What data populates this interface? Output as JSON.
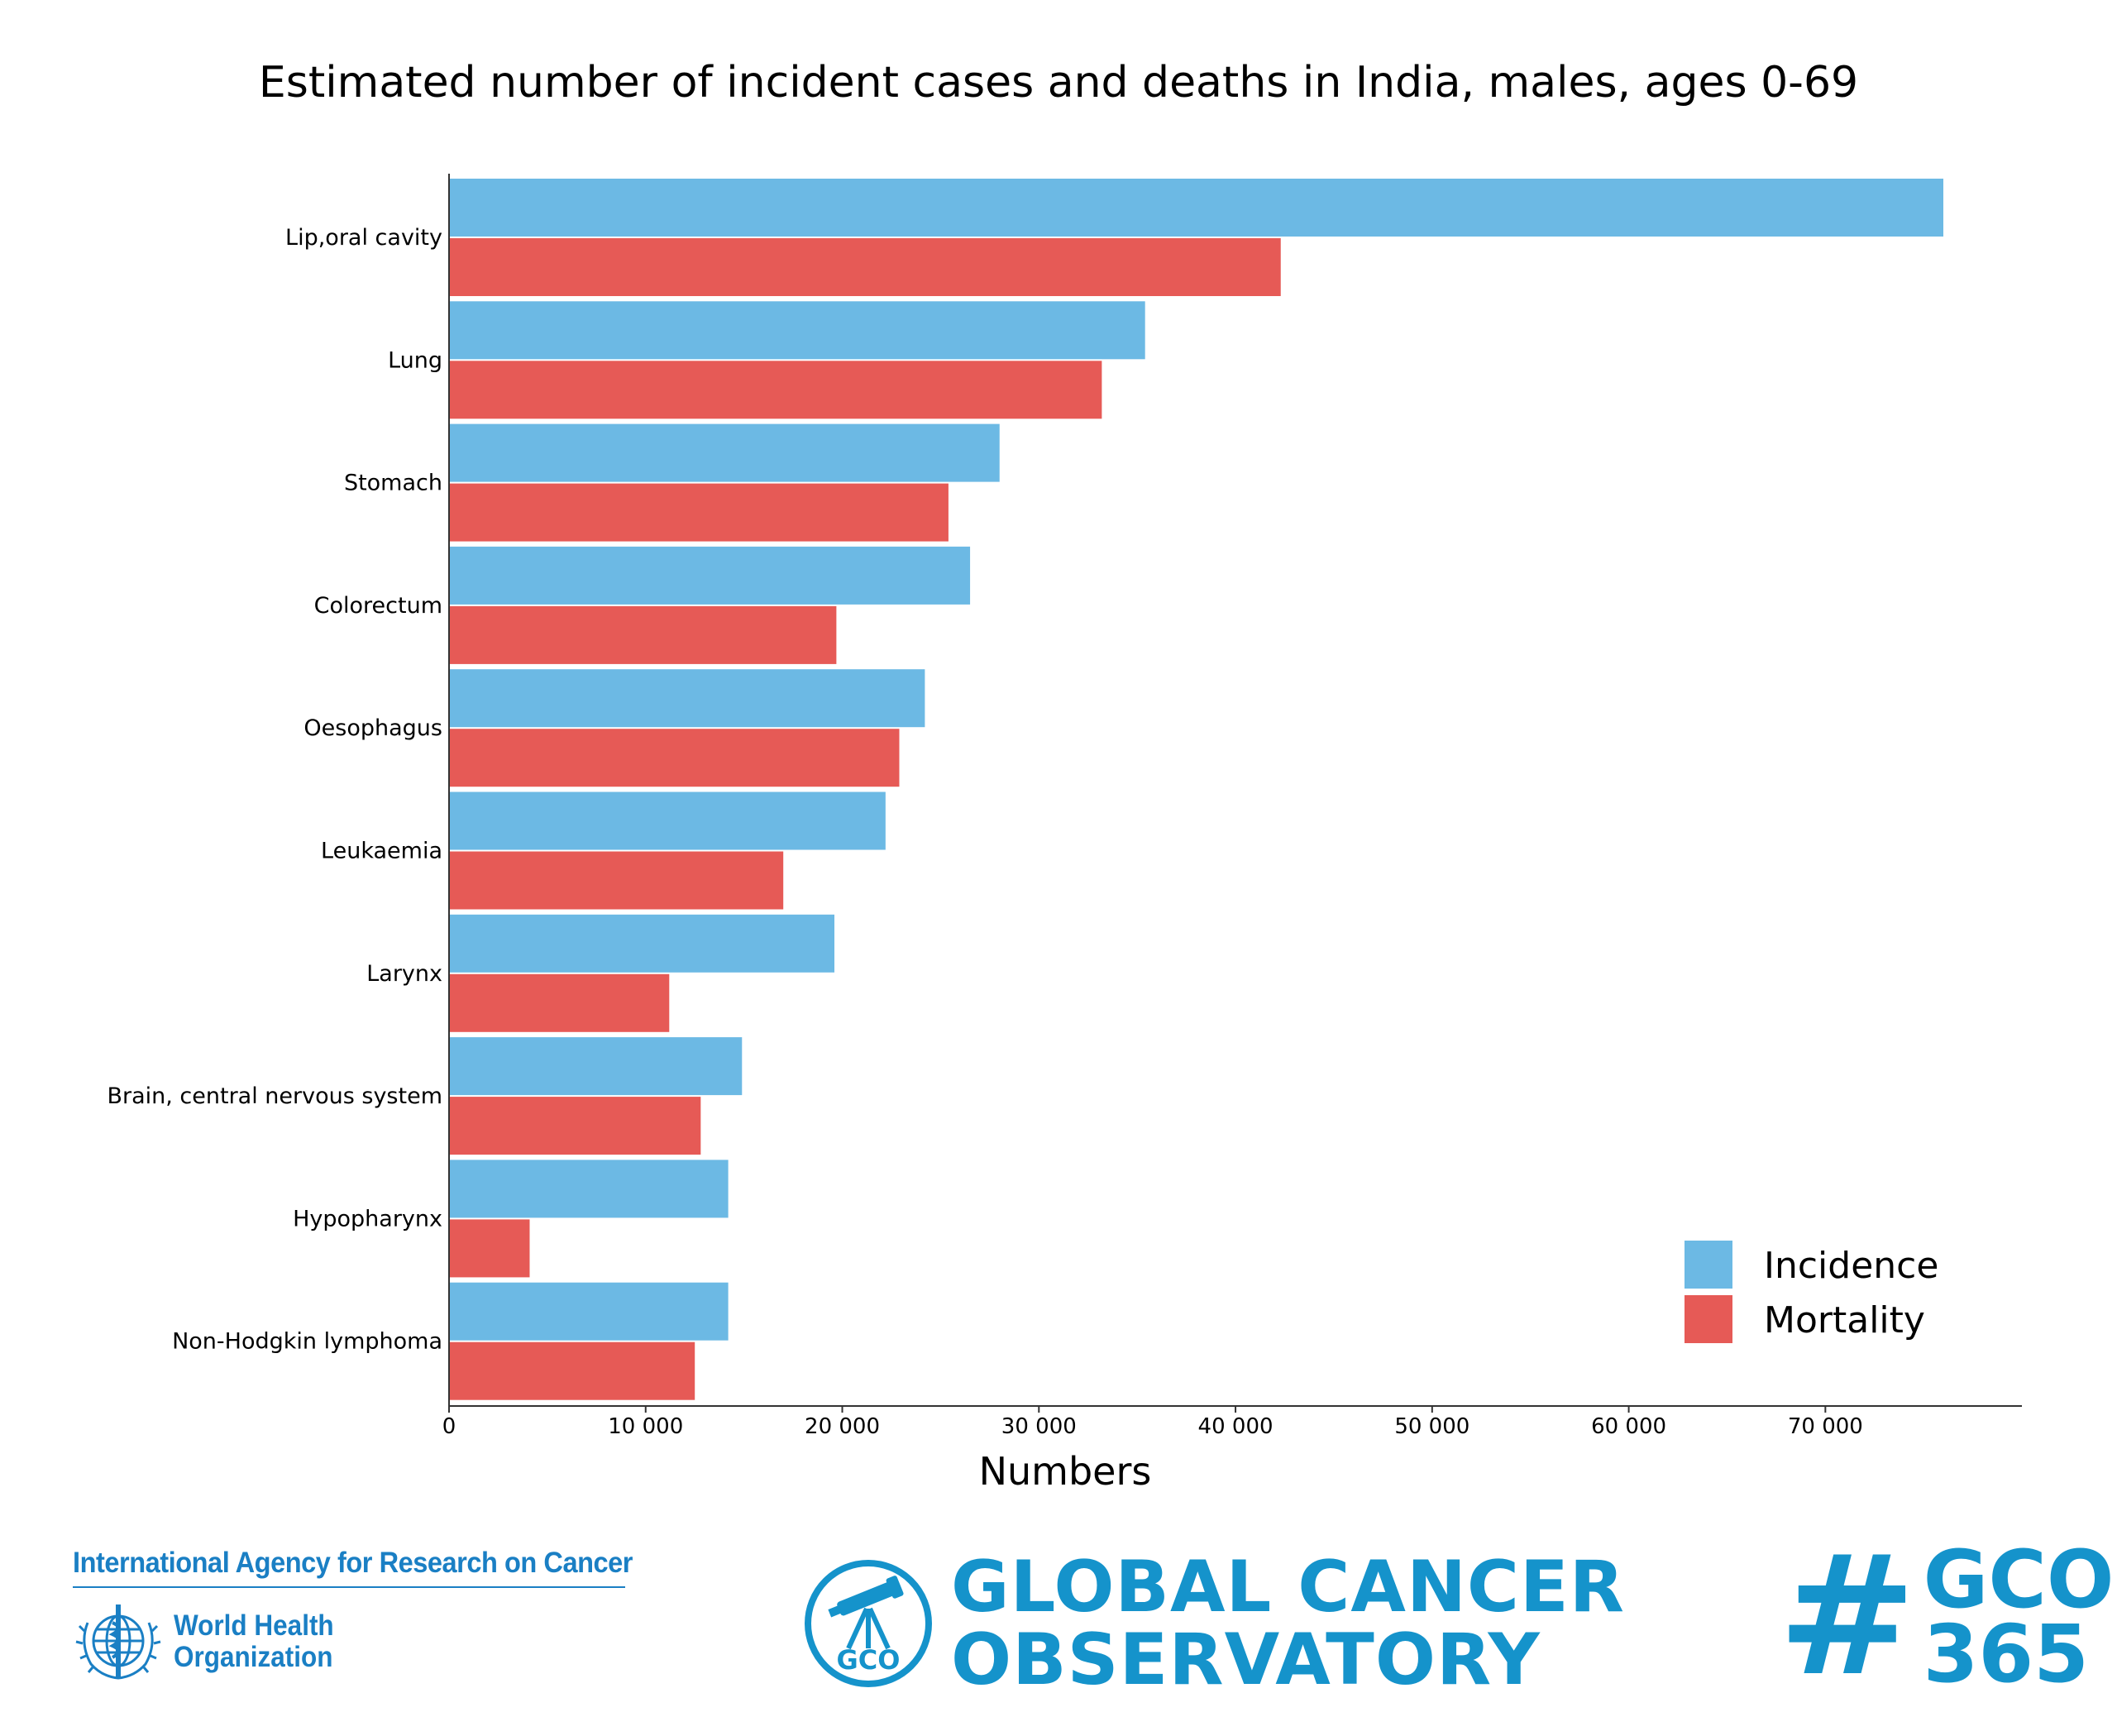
{
  "chart_data": {
    "type": "bar",
    "orientation": "horizontal",
    "title": "Estimated number of incident cases and deaths in India, males, ages 0-69",
    "xlabel": "Numbers",
    "ylabel": "",
    "xlim": [
      0,
      80000
    ],
    "xticks": [
      0,
      10000,
      20000,
      30000,
      40000,
      50000,
      60000,
      70000
    ],
    "xtick_labels": [
      "0",
      "10 000",
      "20 000",
      "30 000",
      "40 000",
      "50 000",
      "60 000",
      "70 000"
    ],
    "categories": [
      "Lip,oral cavity",
      "Lung",
      "Stomach",
      "Colorectum",
      "Oesophagus",
      "Leukaemia",
      "Larynx",
      "Brain, central nervous system",
      "Hypopharynx",
      "Non-Hodgkin lymphoma"
    ],
    "series": [
      {
        "name": "Incidence",
        "color": "#6cb9e4",
        "values": [
          76000,
          35400,
          28000,
          26500,
          24200,
          22200,
          19600,
          14900,
          14200,
          14200
        ]
      },
      {
        "name": "Mortality",
        "color": "#e65a56",
        "values": [
          42300,
          33200,
          25400,
          19700,
          22900,
          17000,
          11200,
          12800,
          4100,
          12500
        ]
      }
    ],
    "legend_position": "bottom-right",
    "grid": false
  },
  "footer": {
    "iarc_name": "International Agency for Research on Cancer",
    "who_line1": "World Health",
    "who_line2": "Organization",
    "gco_line1": "GLOBAL CANCER",
    "gco_line2": "OBSERVATORY",
    "gco_badge": "GCO",
    "hashtag_sign": "#",
    "hashtag_line1": "GCO",
    "hashtag_line2": "365",
    "brand_color": "#1593cb",
    "iarc_color": "#1a7fc4"
  }
}
